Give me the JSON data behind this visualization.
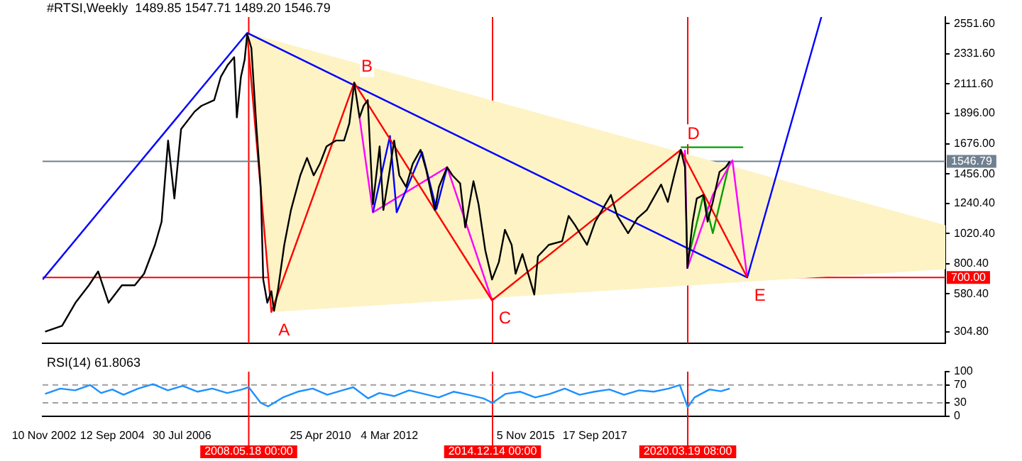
{
  "chart_data": [
    {
      "type": "line",
      "title": "#RTSI,Weekly  1489.85 1547.71 1489.20 1546.79",
      "xlim": [
        "2002-10-27",
        "2027-02-28"
      ],
      "ylim": [
        220,
        2600
      ],
      "yticks": [
        {
          "value": 304.8,
          "label": "304.80"
        },
        {
          "value": 580.4,
          "label": "580.40"
        },
        {
          "value": 800.4,
          "label": "800.40"
        },
        {
          "value": 1020.4,
          "label": "1020.40"
        },
        {
          "value": 1240.4,
          "label": "1240.40"
        },
        {
          "value": 1456,
          "label": "1456.00"
        },
        {
          "value": 1676,
          "label": "1676.00"
        },
        {
          "value": 1896,
          "label": "1896.00"
        },
        {
          "value": 2111.6,
          "label": "2111.60"
        },
        {
          "value": 2331.6,
          "label": "2331.60"
        },
        {
          "value": 2551.6,
          "label": "2551.60"
        }
      ],
      "tick_labels": "y",
      "series": [
        {
          "color": "#000000",
          "x": [
            "2002-11-21",
            "2003-05-07",
            "2003-09-16",
            "2004-01-26",
            "2004-04-26",
            "2004-08-07",
            "2004-12-16",
            "2005-04-22",
            "2005-07-22",
            "2005-11-07",
            "2006-01-11",
            "2006-03-16",
            "2006-05-17",
            "2006-07-22",
            "2006-12-02",
            "2007-02-07",
            "2007-06-13",
            "2007-08-17",
            "2007-10-22",
            "2007-12-27",
            "2008-01-22",
            "2008-03-02",
            "2008-04-08",
            "2008-05-03",
            "2008-06-13",
            "2008-08-03",
            "2008-09-13",
            "2008-10-08",
            "2008-11-17",
            "2008-12-27",
            "2009-01-22",
            "2009-02-28",
            "2009-05-03",
            "2009-07-08",
            "2009-10-08",
            "2009-12-13",
            "2010-02-17",
            "2010-04-19",
            "2010-06-23",
            "2010-09-23",
            "2010-12-13",
            "2011-02-03",
            "2011-03-23",
            "2011-05-14",
            "2011-06-23",
            "2011-08-03",
            "2011-09-23",
            "2011-11-28",
            "2012-01-04",
            "2012-02-28",
            "2012-04-19",
            "2012-06-09",
            "2012-08-14",
            "2012-10-19",
            "2013-01-04",
            "2013-02-28",
            "2013-05-25",
            "2013-07-04",
            "2013-09-23",
            "2013-11-14",
            "2014-01-29",
            "2014-03-20",
            "2014-06-09",
            "2014-07-29",
            "2014-10-04",
            "2014-12-09",
            "2015-02-14",
            "2015-04-15",
            "2015-06-20",
            "2015-07-29",
            "2015-10-04",
            "2016-01-29",
            "2016-03-05",
            "2016-06-20",
            "2016-10-29",
            "2017-01-01",
            "2017-03-05",
            "2017-07-01",
            "2017-09-20",
            "2018-02-21",
            "2018-04-26",
            "2018-08-10",
            "2018-11-10",
            "2019-02-10",
            "2019-07-01",
            "2019-09-05",
            "2019-11-07",
            "2020-01-11",
            "2020-02-21",
            "2020-03-16",
            "2020-05-07",
            "2020-06-16",
            "2020-08-21",
            "2020-10-01",
            "2020-11-21",
            "2021-01-26",
            "2021-03-27",
            "2021-05-07"
          ],
          "values": [
            305,
            347,
            516,
            643,
            744,
            516,
            643,
            643,
            727,
            938,
            1107,
            1699,
            1276,
            1783,
            1910,
            1952,
            1994,
            2163,
            2248,
            2307,
            1867,
            2163,
            2290,
            2476,
            2374,
            1783,
            1361,
            685,
            516,
            600,
            457,
            600,
            938,
            1192,
            1445,
            1572,
            1445,
            1530,
            1656,
            1699,
            1699,
            1825,
            2121,
            1867,
            1952,
            1994,
            1234,
            1656,
            1192,
            1445,
            1699,
            1445,
            1361,
            1530,
            1631,
            1487,
            1192,
            1361,
            1504,
            1445,
            1386,
            1065,
            1403,
            1234,
            896,
            685,
            812,
            1048,
            938,
            727,
            871,
            575,
            854,
            938,
            964,
            1149,
            1082,
            938,
            1107,
            1302,
            1149,
            1023,
            1133,
            1192,
            1378,
            1251,
            1445,
            1631,
            1504,
            769,
            1107,
            1276,
            1302,
            1107,
            1251,
            1470,
            1504,
            1547
          ]
        },
        {
          "color": "#ff0000",
          "x": [
            "2008-05-03",
            "2008-12-27",
            "2011-03-23",
            "2014-12-09",
            "2020-01-11",
            "2021-10-26"
          ],
          "values": [
            2476,
            448,
            2121,
            533,
            1631,
            700
          ]
        },
        {
          "color": "#0000ff",
          "x": [
            "2002-10-27",
            "2008-05-03",
            "2021-10-26",
            "2023-10-26"
          ],
          "values": [
            685,
            2484,
            700,
            2600
          ]
        },
        {
          "color": "#0000ff",
          "x": [
            "2011-09-23",
            "2012-03-09",
            "2012-05-14",
            "2013-01-19",
            "2013-06-09",
            "2013-09-23"
          ],
          "values": [
            1175,
            1732,
            1175,
            1614,
            1200,
            1504
          ]
        },
        {
          "color": "#ff00ff",
          "x": [
            "2011-05-14",
            "2011-09-23",
            "2013-09-23",
            "2014-12-09"
          ],
          "values": [
            1867,
            1175,
            1504,
            533
          ]
        },
        {
          "color": "#ff00ff",
          "x": [
            "2020-02-21",
            "2020-03-16",
            "2020-11-21",
            "2021-06-02",
            "2021-10-26"
          ],
          "values": [
            1631,
            769,
            1302,
            1555,
            700
          ]
        },
        {
          "color": "#00a000",
          "x": [
            "2020-03-16",
            "2020-08-21",
            "2020-11-21",
            "2021-05-07"
          ],
          "values": [
            811,
            1302,
            1023,
            1547
          ]
        },
        {
          "color": "#00a000",
          "x": [
            "2020-01-11",
            "2021-09-16"
          ],
          "values": [
            1650,
            1650
          ]
        },
        {
          "type": "area",
          "color": "#fdf3c4",
          "x": [
            "2008-05-03",
            "2027-02-28",
            "2027-02-28",
            "2008-12-27"
          ],
          "values": [
            2484,
            1082,
            761,
            448
          ]
        }
      ],
      "ref_lines": [
        {
          "axis": "x",
          "value": "2008-05-18T00:00",
          "color": "#ff0000"
        },
        {
          "axis": "x",
          "value": "2014-12-14T00:00",
          "color": "#ff0000"
        },
        {
          "axis": "x",
          "value": "2020-03-19T08:00",
          "color": "#ff0000"
        },
        {
          "axis": "y",
          "value": 700,
          "label": "700.00",
          "color": "#ff0000"
        },
        {
          "axis": "y",
          "value": 1546.79,
          "label": "1546.79",
          "color": "#708090"
        }
      ],
      "annotations": [
        {
          "text": "A",
          "x": "2008-12-27",
          "y": 448
        },
        {
          "text": "B",
          "x": "2011-03-23",
          "y": 2121
        },
        {
          "text": "C",
          "x": "2014-12-09",
          "y": 533
        },
        {
          "text": "D",
          "x": "2020-01-11",
          "y": 1631
        },
        {
          "text": "E",
          "x": "2021-10-26",
          "y": 700
        }
      ]
    },
    {
      "type": "line",
      "title": "RSI(14) 61.8063",
      "xlim": [
        "2002-10-27",
        "2027-02-28"
      ],
      "xticks": [
        {
          "value": "2002-11-10",
          "label": "10 Nov 2002"
        },
        {
          "value": "2004-09-12",
          "label": "12 Sep 2004"
        },
        {
          "value": "2006-07-30",
          "label": "30 Jul 2006"
        },
        {
          "value": "2010-04-25",
          "label": "25 Apr 2010"
        },
        {
          "value": "2012-03-04",
          "label": "4 Mar 2012"
        },
        {
          "value": "2015-11-05",
          "label": "5 Nov 2015"
        },
        {
          "value": "2017-09-17",
          "label": "17 Sep 2017"
        }
      ],
      "ylim": [
        0,
        100
      ],
      "yticks": [
        0,
        30,
        70,
        100
      ],
      "series": [
        {
          "color": "#1e90ff",
          "x": [
            "2002-11-21",
            "2003-04-19",
            "2003-09-13",
            "2004-02-07",
            "2004-05-25",
            "2004-09-13",
            "2005-01-01",
            "2005-05-25",
            "2005-10-19",
            "2006-03-13",
            "2006-08-07",
            "2007-01-01",
            "2007-05-25",
            "2007-10-19",
            "2008-03-13",
            "2008-05-18",
            "2008-09-13",
            "2008-11-25",
            "2009-04-19",
            "2009-09-13",
            "2010-02-07",
            "2010-07-01",
            "2010-11-25",
            "2011-03-13",
            "2011-08-07",
            "2011-11-25",
            "2012-04-19",
            "2012-09-13",
            "2013-02-07",
            "2013-07-01",
            "2013-11-25",
            "2014-04-19",
            "2014-09-13",
            "2014-12-14",
            "2015-04-19",
            "2015-09-13",
            "2016-02-07",
            "2016-07-01",
            "2016-11-25",
            "2017-04-19",
            "2017-09-13",
            "2018-02-07",
            "2018-07-01",
            "2018-11-25",
            "2019-04-19",
            "2019-09-13",
            "2020-01-01",
            "2020-03-19",
            "2020-05-25",
            "2020-10-19",
            "2021-02-07",
            "2021-05-07"
          ],
          "values": [
            50,
            62,
            58,
            70,
            52,
            60,
            48,
            62,
            72,
            58,
            68,
            55,
            62,
            52,
            60,
            65,
            30,
            22,
            42,
            55,
            62,
            48,
            58,
            65,
            40,
            52,
            45,
            58,
            50,
            42,
            55,
            48,
            40,
            30,
            50,
            55,
            42,
            50,
            62,
            48,
            55,
            60,
            48,
            58,
            55,
            62,
            70,
            20,
            42,
            60,
            56,
            62
          ]
        }
      ],
      "ref_lines": [
        {
          "axis": "x",
          "value": "2008-05-18T00:00",
          "label": "2008.05.18 00:00",
          "color": "#ff0000"
        },
        {
          "axis": "x",
          "value": "2014-12-14T00:00",
          "label": "2014.12.14 00:00",
          "color": "#ff0000"
        },
        {
          "axis": "x",
          "value": "2020-03-19T08:00",
          "label": "2020.03.19 08:00",
          "color": "#ff0000"
        },
        {
          "axis": "y",
          "value": 70,
          "color": "#a0a0a0",
          "line_style": "dashed"
        },
        {
          "axis": "y",
          "value": 30,
          "color": "#a0a0a0",
          "line_style": "dashed"
        }
      ]
    }
  ]
}
